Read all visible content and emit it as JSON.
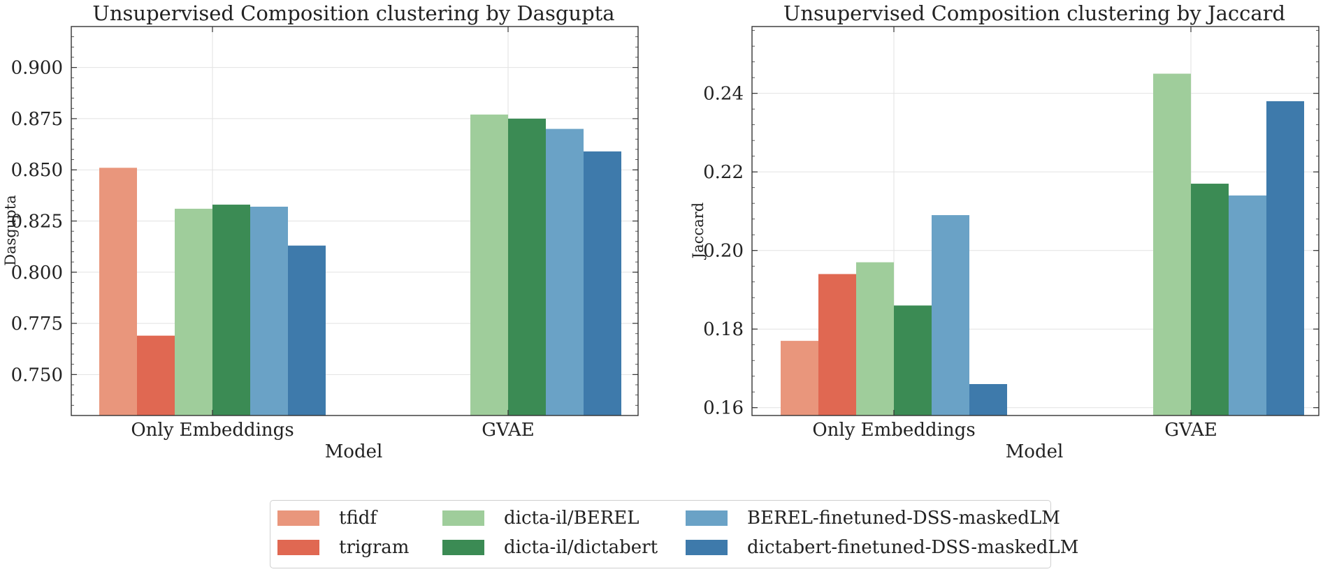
{
  "chart_data": [
    {
      "type": "bar",
      "title": "Unsupervised Composition clustering by Dasgupta",
      "xlabel": "Model",
      "ylabel": "Dasgupta",
      "categories": [
        "Only Embeddings",
        "GVAE"
      ],
      "ylim": [
        0.73,
        0.92
      ],
      "yticks": [
        "0.750",
        "0.775",
        "0.800",
        "0.825",
        "0.850",
        "0.875",
        "0.900"
      ],
      "ytick_values": [
        0.75,
        0.775,
        0.8,
        0.825,
        0.85,
        0.875,
        0.9
      ],
      "grid": true,
      "series": [
        {
          "name": "tfidf",
          "values": [
            0.851,
            null
          ]
        },
        {
          "name": "trigram",
          "values": [
            0.769,
            null
          ]
        },
        {
          "name": "dicta-il/BEREL",
          "values": [
            0.831,
            0.877
          ]
        },
        {
          "name": "dicta-il/dictabert",
          "values": [
            0.833,
            0.875
          ]
        },
        {
          "name": "BEREL-finetuned-DSS-maskedLM",
          "values": [
            0.832,
            0.87
          ]
        },
        {
          "name": "dictabert-finetuned-DSS-maskedLM",
          "values": [
            0.813,
            0.859
          ]
        }
      ]
    },
    {
      "type": "bar",
      "title": "Unsupervised Composition clustering by Jaccard",
      "xlabel": "Model",
      "ylabel": "Jaccard",
      "categories": [
        "Only Embeddings",
        "GVAE"
      ],
      "ylim": [
        0.158,
        0.257
      ],
      "yticks": [
        "0.16",
        "0.18",
        "0.20",
        "0.22",
        "0.24"
      ],
      "ytick_values": [
        0.16,
        0.18,
        0.2,
        0.22,
        0.24
      ],
      "grid": true,
      "series": [
        {
          "name": "tfidf",
          "values": [
            0.177,
            null
          ]
        },
        {
          "name": "trigram",
          "values": [
            0.194,
            null
          ]
        },
        {
          "name": "dicta-il/BEREL",
          "values": [
            0.197,
            0.245
          ]
        },
        {
          "name": "dicta-il/dictabert",
          "values": [
            0.186,
            0.217
          ]
        },
        {
          "name": "BEREL-finetuned-DSS-maskedLM",
          "values": [
            0.209,
            0.214
          ]
        },
        {
          "name": "dictabert-finetuned-DSS-maskedLM",
          "values": [
            0.166,
            0.238
          ]
        }
      ]
    }
  ],
  "colors": {
    "tfidf": "#e9967c",
    "trigram": "#e06852",
    "dicta-il/BEREL": "#9fcd9b",
    "dicta-il/dictabert": "#3b8b54",
    "BEREL-finetuned-DSS-maskedLM": "#6aa2c6",
    "dictabert-finetuned-DSS-maskedLM": "#3e7aab"
  },
  "legend": {
    "placement": "bottom-center",
    "items": [
      {
        "label": "tfidf",
        "color": "#e9967c"
      },
      {
        "label": "trigram",
        "color": "#e06852"
      },
      {
        "label": "dicta-il/BEREL",
        "color": "#9fcd9b"
      },
      {
        "label": "dicta-il/dictabert",
        "color": "#3b8b54"
      },
      {
        "label": "BEREL-finetuned-DSS-maskedLM",
        "color": "#6aa2c6"
      },
      {
        "label": "dictabert-finetuned-DSS-maskedLM",
        "color": "#3e7aab"
      }
    ]
  }
}
